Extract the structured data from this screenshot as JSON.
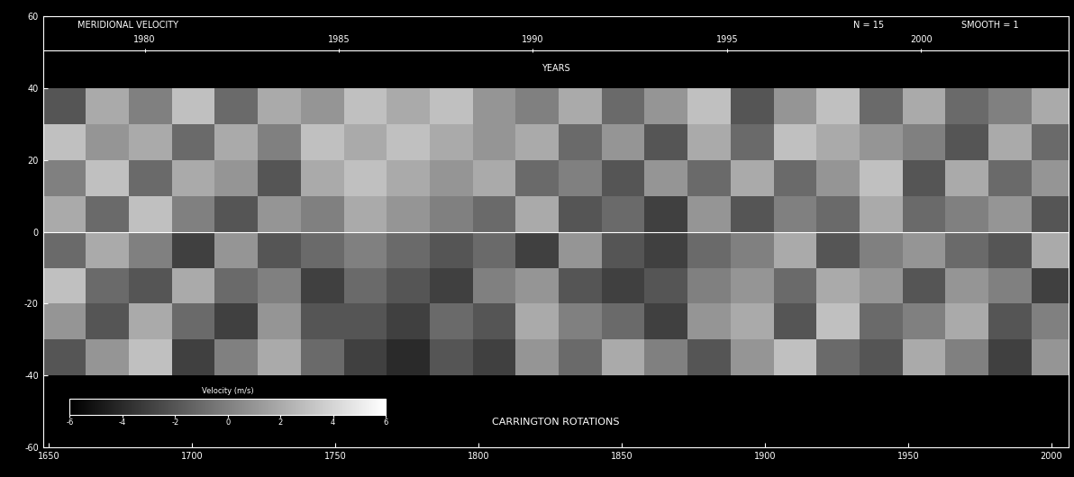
{
  "chart_data": {
    "type": "heatmap",
    "title": "MERIDIONAL VELOCITY",
    "annotations": [
      "N = 15",
      "SMOOTH = 1"
    ],
    "xlabel": "CARRINGTON ROTATIONS",
    "x2label": "YEARS",
    "xlim": [
      1648,
      2006
    ],
    "xticks": [
      1650,
      1700,
      1750,
      1800,
      1850,
      1900,
      1950,
      2000
    ],
    "x2lim": [
      1977.38,
      2003.8
    ],
    "x2ticks": [
      1980,
      1985,
      1990,
      1995,
      2000
    ],
    "ylim": [
      -60,
      60
    ],
    "yticks": [
      -60,
      -40,
      -20,
      0,
      20,
      40,
      60
    ],
    "x_edges": [
      1648,
      1663,
      1678,
      1693,
      1708,
      1723,
      1738,
      1753,
      1768,
      1783,
      1798,
      1813,
      1828,
      1843,
      1858,
      1873,
      1888,
      1903,
      1918,
      1933,
      1948,
      1963,
      1978,
      1993,
      2008
    ],
    "y_edges": [
      -40,
      -30,
      -20,
      -10,
      0,
      10,
      20,
      30,
      40
    ],
    "cells": [
      [
        -2,
        1,
        3,
        -3,
        0,
        2,
        -1,
        -3,
        -4,
        -2,
        -3,
        1,
        -1,
        2,
        0,
        -2,
        1,
        3,
        -1,
        -2,
        2,
        0,
        -3,
        1
      ],
      [
        1,
        -2,
        2,
        -1,
        -3,
        1,
        -2,
        -2,
        -3,
        -1,
        -2,
        2,
        0,
        -1,
        -3,
        1,
        2,
        -2,
        3,
        -1,
        0,
        2,
        -2,
        0
      ],
      [
        3,
        -1,
        -2,
        2,
        -1,
        0,
        -3,
        -1,
        -2,
        -3,
        0,
        1,
        -2,
        -3,
        -2,
        0,
        1,
        -1,
        2,
        1,
        -2,
        1,
        0,
        -3
      ],
      [
        -1,
        2,
        0,
        -3,
        1,
        -2,
        -1,
        0,
        -1,
        -2,
        -1,
        -3,
        1,
        -2,
        -3,
        -1,
        0,
        2,
        -2,
        0,
        1,
        -1,
        -2,
        2
      ],
      [
        2,
        -1,
        3,
        0,
        -2,
        1,
        0,
        2,
        1,
        0,
        -1,
        2,
        -2,
        -1,
        -3,
        1,
        -2,
        0,
        -1,
        2,
        -1,
        0,
        1,
        -2
      ],
      [
        0,
        3,
        -1,
        2,
        1,
        -2,
        2,
        3,
        2,
        1,
        2,
        -1,
        0,
        -2,
        1,
        -1,
        2,
        -1,
        1,
        3,
        -2,
        2,
        -1,
        1
      ],
      [
        3,
        1,
        2,
        -1,
        2,
        0,
        3,
        2,
        3,
        2,
        1,
        2,
        -1,
        1,
        -2,
        2,
        -1,
        3,
        2,
        1,
        0,
        -2,
        2,
        -1
      ],
      [
        -2,
        2,
        0,
        3,
        -1,
        2,
        1,
        3,
        2,
        3,
        1,
        0,
        2,
        -1,
        1,
        3,
        -2,
        1,
        3,
        -1,
        2,
        -1,
        0,
        2
      ]
    ],
    "colorbar_label": "Velocity (m/s)",
    "colorbar_range": [
      -6,
      6
    ],
    "colorbar_ticks": [
      -6,
      -4,
      -2,
      0,
      2,
      4,
      6
    ]
  }
}
